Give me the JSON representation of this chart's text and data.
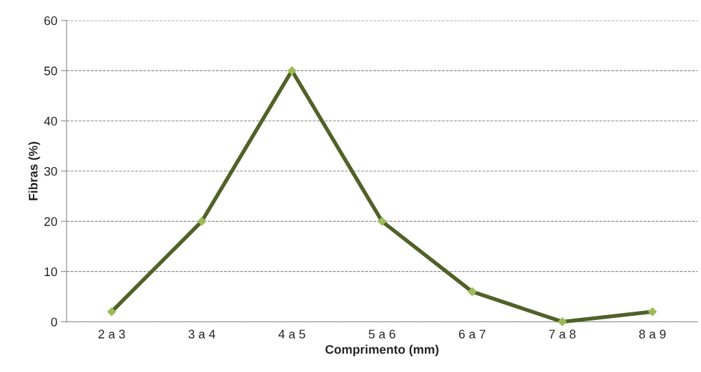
{
  "chart_data": {
    "type": "line",
    "xlabel": "Comprimento (mm)",
    "ylabel": "Fibras (%)",
    "categories": [
      "2 a 3",
      "3 a 4",
      "4 a 5",
      "5 a 6",
      "6 a 7",
      "7 a 8",
      "8 a 9"
    ],
    "series": [
      {
        "color": "#4f6228",
        "values": [
          2,
          20,
          50,
          20,
          6,
          0,
          2
        ]
      }
    ],
    "ylim": [
      0,
      60
    ],
    "yticks": [
      0,
      10,
      20,
      30,
      40,
      50,
      60
    ],
    "grid": "y",
    "marker": "diamond",
    "line_style": "solid"
  }
}
